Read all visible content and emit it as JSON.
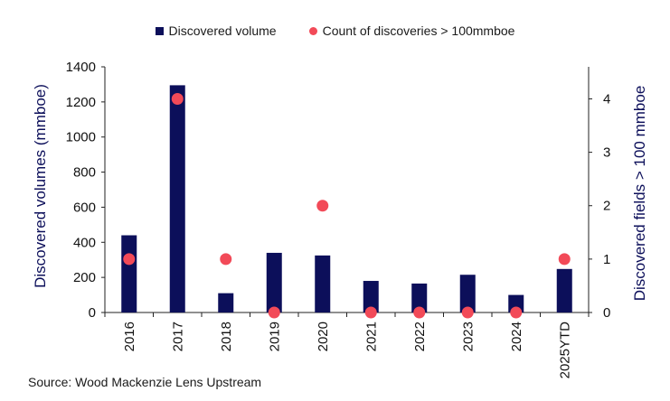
{
  "chart_data": {
    "type": "bar",
    "categories": [
      "2016",
      "2017",
      "2018",
      "2019",
      "2020",
      "2021",
      "2022",
      "2023",
      "2024",
      "2025YTD"
    ],
    "series": [
      {
        "name": "Discovered volume",
        "type": "bar",
        "axis": "left",
        "values": [
          440,
          1295,
          110,
          340,
          325,
          180,
          165,
          215,
          100,
          248
        ],
        "color": "#0c0f5a"
      },
      {
        "name": "Count of discoveries > 100mmboe",
        "type": "scatter",
        "axis": "right",
        "values": [
          1,
          4,
          1,
          0,
          2,
          0,
          0,
          0,
          0,
          1
        ],
        "color": "#f24a58"
      }
    ],
    "ylabel": "Discovered volumes (mmboe)",
    "y2label": "Discovered fields > 100 mmboe",
    "ylim": [
      0,
      1400
    ],
    "y2lim": [
      0,
      4.6
    ],
    "yticks": [
      0,
      200,
      400,
      600,
      800,
      1000,
      1200,
      1400
    ],
    "y2ticks": [
      0,
      1,
      2,
      3,
      4
    ],
    "legend_position": "top-center",
    "grid": false
  },
  "source": "Source: Wood Mackenzie Lens Upstream"
}
